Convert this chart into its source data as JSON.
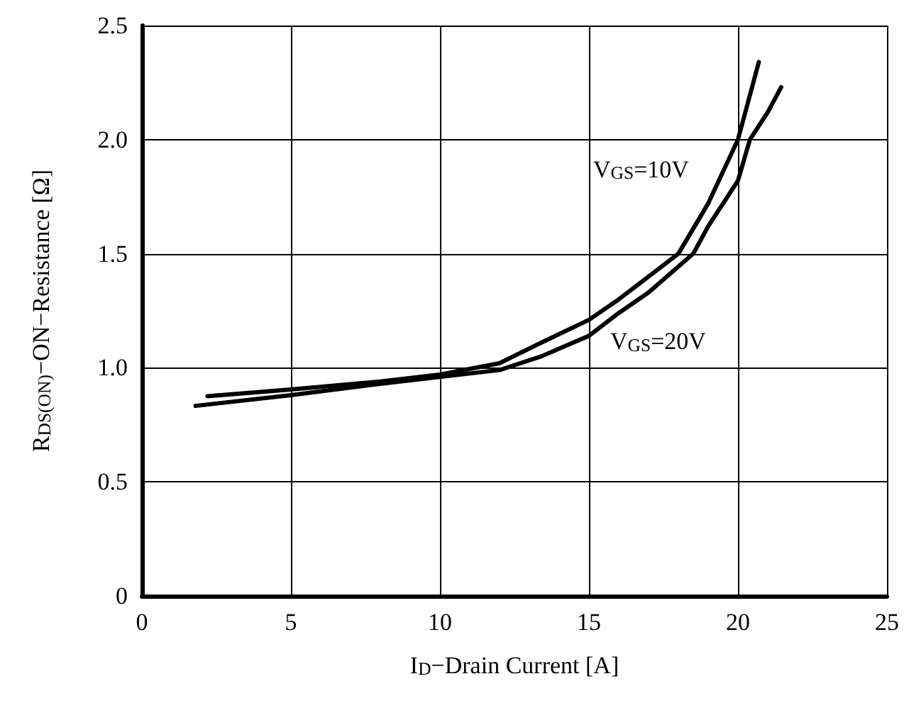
{
  "chart_data": {
    "type": "line",
    "xlabel": "I$_{D}$−Drain Current [A]",
    "ylabel": "R$_{DS(ON)}$−ON−Resistance [Ω]",
    "xlim": [
      0,
      25
    ],
    "xticks": [
      0,
      5,
      10,
      15,
      20,
      25
    ],
    "ylim": [
      0,
      2.5
    ],
    "yticks": [
      0,
      {
        "value": 0.5,
        "label": "0.5"
      },
      {
        "value": 1,
        "label": "1.0"
      },
      {
        "value": 1.5,
        "label": "1.5"
      },
      {
        "value": 2,
        "label": "2.0"
      },
      {
        "value": 2.5,
        "label": "2.5"
      }
    ],
    "grid": true,
    "marker": "none",
    "line_style": "solid",
    "series": [
      {
        "name": "V$_{GS}$=10V",
        "color": "#000000",
        "x": [
          2.2,
          5,
          8,
          10,
          12,
          13.4,
          15,
          16,
          17,
          18,
          19,
          20,
          20.7
        ],
        "values": [
          0.875,
          0.905,
          0.94,
          0.97,
          1.02,
          1.11,
          1.21,
          1.3,
          1.4,
          1.5,
          1.72,
          2.0,
          2.34
        ]
      },
      {
        "name": "V$_{GS}$=20V",
        "color": "#000000",
        "x": [
          1.8,
          5,
          8,
          10,
          12,
          13.4,
          15,
          16,
          17,
          18.5,
          19,
          20,
          20.4,
          21,
          21.45
        ],
        "values": [
          0.833,
          0.88,
          0.93,
          0.96,
          0.99,
          1.05,
          1.14,
          1.24,
          1.33,
          1.5,
          1.62,
          1.82,
          2.0,
          2.12,
          2.23
        ]
      }
    ]
  }
}
